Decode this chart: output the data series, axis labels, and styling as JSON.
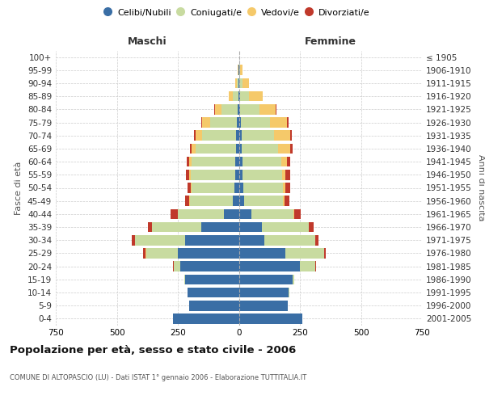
{
  "age_groups": [
    "100+",
    "95-99",
    "90-94",
    "85-89",
    "80-84",
    "75-79",
    "70-74",
    "65-69",
    "60-64",
    "55-59",
    "50-54",
    "45-49",
    "40-44",
    "35-39",
    "30-34",
    "25-29",
    "20-24",
    "15-19",
    "10-14",
    "5-9",
    "0-4"
  ],
  "birth_years": [
    "≤ 1905",
    "1906-1910",
    "1911-1915",
    "1916-1920",
    "1921-1925",
    "1926-1930",
    "1931-1935",
    "1936-1940",
    "1941-1945",
    "1946-1950",
    "1951-1955",
    "1956-1960",
    "1961-1965",
    "1966-1970",
    "1971-1975",
    "1976-1980",
    "1981-1985",
    "1986-1990",
    "1991-1995",
    "1996-2000",
    "2001-2005"
  ],
  "male_celibi": [
    0,
    1,
    2,
    3,
    5,
    8,
    10,
    12,
    14,
    16,
    18,
    25,
    60,
    155,
    220,
    250,
    240,
    220,
    210,
    205,
    270
  ],
  "male_coniugati": [
    0,
    1,
    5,
    22,
    65,
    110,
    140,
    165,
    180,
    180,
    175,
    175,
    190,
    200,
    205,
    130,
    25,
    4,
    1,
    0,
    0
  ],
  "male_vedovi": [
    0,
    3,
    8,
    18,
    28,
    32,
    28,
    16,
    8,
    6,
    4,
    2,
    1,
    1,
    1,
    2,
    1,
    0,
    0,
    0,
    0
  ],
  "male_divorziati": [
    0,
    0,
    0,
    0,
    2,
    4,
    6,
    8,
    10,
    14,
    14,
    18,
    30,
    18,
    12,
    10,
    4,
    0,
    0,
    0,
    0
  ],
  "female_celibi": [
    0,
    1,
    3,
    4,
    5,
    8,
    10,
    12,
    14,
    16,
    18,
    22,
    50,
    95,
    105,
    190,
    250,
    220,
    205,
    200,
    260
  ],
  "female_coniugati": [
    0,
    3,
    12,
    38,
    78,
    118,
    135,
    150,
    160,
    160,
    162,
    160,
    172,
    190,
    208,
    158,
    62,
    8,
    2,
    0,
    0
  ],
  "female_vedovi": [
    1,
    10,
    28,
    55,
    68,
    72,
    65,
    48,
    24,
    16,
    12,
    6,
    4,
    2,
    1,
    1,
    1,
    0,
    0,
    0,
    0
  ],
  "female_divorziati": [
    0,
    0,
    0,
    1,
    4,
    6,
    8,
    10,
    12,
    18,
    18,
    20,
    28,
    20,
    12,
    8,
    4,
    0,
    0,
    0,
    0
  ],
  "color_celibi": "#3a6ea5",
  "color_coniugati": "#c8dba0",
  "color_vedovi": "#f5c96a",
  "color_divorziati": "#c0392b",
  "title": "Popolazione per età, sesso e stato civile - 2006",
  "subtitle": "COMUNE DI ALTOPASCIO (LU) - Dati ISTAT 1° gennaio 2006 - Elaborazione TUTTITALIA.IT",
  "xlabel_left": "Maschi",
  "xlabel_right": "Femmine",
  "ylabel_left": "Fasce di età",
  "ylabel_right": "Anni di nascita",
  "xlim": 750,
  "bg_color": "#ffffff",
  "grid_color": "#cccccc"
}
